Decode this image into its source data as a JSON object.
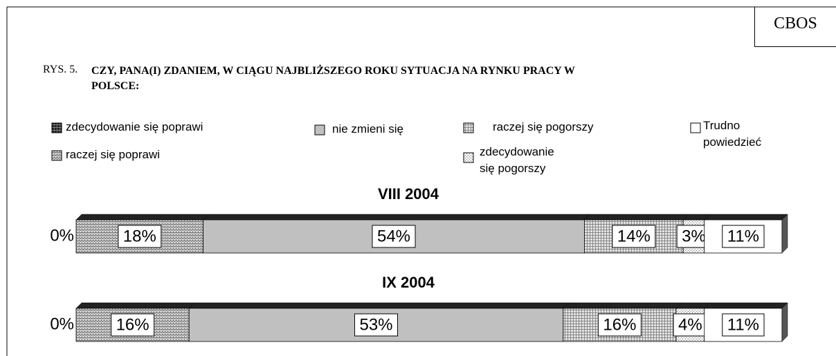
{
  "chart_data": {
    "type": "stacked_bar_horizontal",
    "source": "CBOS",
    "figure_label": "RYS. 5.",
    "title": "CZY, PANA(I) ZDANIEM, W CIĄGU NAJBLIŻSZEGO ROKU SYTUACJA NA RYNKU PRACY W POLSCE:",
    "categories": [
      "VIII 2004",
      "IX 2004"
    ],
    "series": [
      {
        "name": "zdecydowanie się poprawi",
        "color": "#404040",
        "values": [
          0,
          0
        ],
        "value_labels": [
          "0%",
          "0%"
        ]
      },
      {
        "name": "raczej się poprawi",
        "color": "#d8d8d8",
        "values": [
          18,
          16
        ],
        "value_labels": [
          "18%",
          "16%"
        ]
      },
      {
        "name": "nie zmieni się",
        "color": "#c0c0c0",
        "values": [
          54,
          53
        ],
        "value_labels": [
          "54%",
          "53%"
        ]
      },
      {
        "name": "raczej się pogorszy",
        "color": "#e4e4e4",
        "values": [
          14,
          16
        ],
        "value_labels": [
          "14%",
          "16%"
        ]
      },
      {
        "name": "zdecydowanie się pogorszy",
        "color": "#f2f2f2",
        "values": [
          3,
          4
        ],
        "value_labels": [
          "3%",
          "4%"
        ]
      },
      {
        "name": "Trudno powiedzieć",
        "color": "#ffffff",
        "values": [
          11,
          11
        ],
        "value_labels": [
          "11%",
          "11%"
        ]
      }
    ]
  }
}
